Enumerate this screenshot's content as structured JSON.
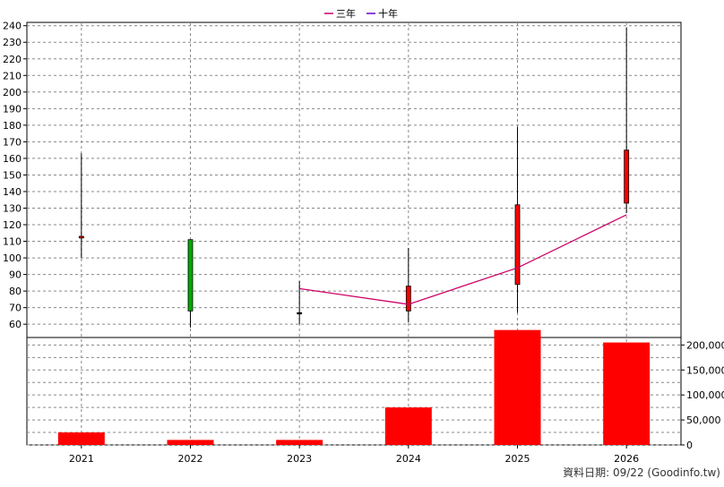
{
  "legend": [
    {
      "label": "三年",
      "color": "#cc0066"
    },
    {
      "label": "十年",
      "color": "#6600cc"
    }
  ],
  "footer": "資料日期: 09/22  (Goodinfo.tw)",
  "chart_data": [
    {
      "type": "candlestick",
      "categories": [
        "2021",
        "2022",
        "2023",
        "2024",
        "2025",
        "2026"
      ],
      "ylim": [
        52,
        242
      ],
      "yticks": [
        60,
        70,
        80,
        90,
        100,
        110,
        120,
        130,
        140,
        150,
        160,
        170,
        180,
        190,
        200,
        210,
        220,
        230,
        240
      ],
      "grid": true,
      "legend_position": "top-center",
      "candles": [
        {
          "x": "2021",
          "open": 112,
          "close": 113,
          "high": 163,
          "low": 100,
          "color": "#ff0000"
        },
        {
          "x": "2022",
          "open": 111,
          "close": 68,
          "high": 111,
          "low": 58,
          "color": "#00aa00"
        },
        {
          "x": "2023",
          "open": 67,
          "close": 67,
          "high": 86,
          "low": 60,
          "color": "#000000"
        },
        {
          "x": "2024",
          "open": 68,
          "close": 83,
          "high": 106,
          "low": 61,
          "color": "#ff0000"
        },
        {
          "x": "2025",
          "open": 84,
          "close": 132,
          "high": 179,
          "low": 67,
          "color": "#ff0000"
        },
        {
          "x": "2026",
          "open": 133,
          "close": 165,
          "high": 239,
          "low": 127,
          "color": "#ff0000"
        }
      ],
      "series": [
        {
          "name": "三年",
          "color": "#cc0066",
          "x": [
            "2023",
            "2024",
            "2025",
            "2026"
          ],
          "values": [
            81.5,
            72,
            94,
            126
          ]
        }
      ]
    },
    {
      "type": "bar",
      "categories": [
        "2021",
        "2022",
        "2023",
        "2024",
        "2025",
        "2026"
      ],
      "values": [
        25000,
        10000,
        10000,
        75000,
        230000,
        205000
      ],
      "color": "#ff0000",
      "ylim": [
        0,
        215000
      ],
      "yticks": [
        0,
        50000,
        100000,
        150000,
        200000
      ],
      "ytick_labels": [
        "0",
        "50,000",
        "100,000",
        "150,000",
        "200,000"
      ],
      "grid": true
    }
  ]
}
